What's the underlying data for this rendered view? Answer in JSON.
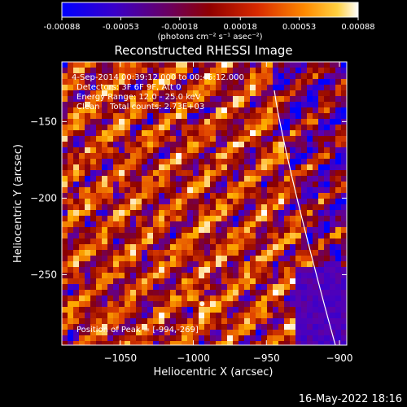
{
  "chart_data": {
    "type": "heatmap",
    "title": "Reconstructed RHESSI Image",
    "xlabel": "Heliocentric X (arcsec)",
    "ylabel": "Heliocentric Y (arcsec)",
    "xlim": [
      -1090,
      -895
    ],
    "ylim": [
      -296,
      -111
    ],
    "x_ticks": [
      -1050,
      -1000,
      -950,
      -900
    ],
    "x_tick_labels": [
      "−1050",
      "−1000",
      "−950",
      "−900"
    ],
    "y_ticks": [
      -150,
      -200,
      -250
    ],
    "y_tick_labels": [
      "−150",
      "−200",
      "−250"
    ],
    "colorbar": {
      "min": -0.00088,
      "max": 0.00088,
      "ticks": [
        -0.00088,
        -0.00053,
        -0.00018,
        0.00018,
        0.00053,
        0.00088
      ],
      "tick_labels": [
        "-0.00088",
        "-0.00053",
        "-0.00018",
        "0.00018",
        "0.00053",
        "0.00088"
      ],
      "units_label": "(photons cm⁻² s⁻¹ asec⁻²)"
    },
    "annotations": [
      "4-Sep-2014 00:39:12.000 to 00:45:12.000",
      "Detectors: 3F 6F 9F, Att 0",
      "Energy Range: 12.0 - 25.0 keV",
      "Clean    Total counts: 2.73E+03"
    ],
    "peak": {
      "label": "Position of Peak = [-994,-269]",
      "x": -994,
      "y": -269
    },
    "limb_color": "#ffffff",
    "colormap": [
      "#0000ff",
      "#5a00b0",
      "#8a0000",
      "#e04000",
      "#ffb000",
      "#ffffff"
    ]
  },
  "footer": {
    "timestamp": "16-May-2022 18:16"
  }
}
